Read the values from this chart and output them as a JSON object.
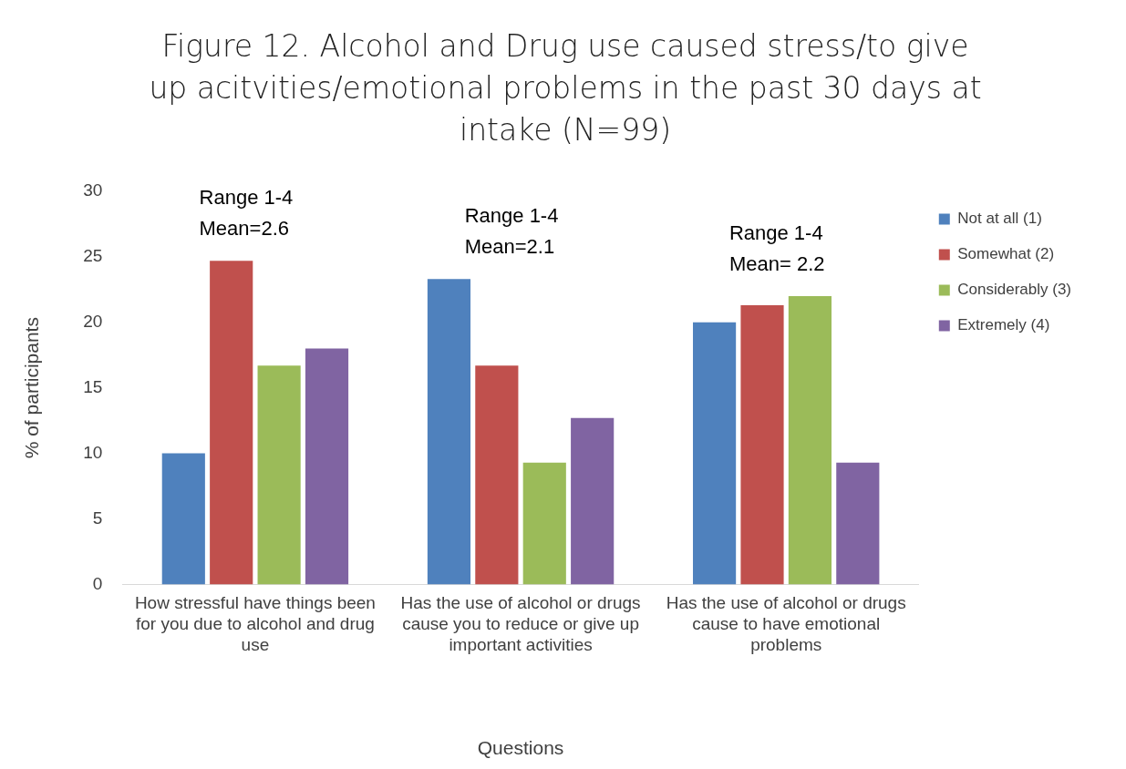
{
  "chart_data": {
    "type": "bar",
    "title": "Figure 12. Alcohol and Drug use caused stress/to give up acitvities/emotional problems in the past 30 days at intake (N=99)",
    "xlabel": "Questions",
    "ylabel": "% of participants",
    "categories": [
      "How stressful have things been for you due to alcohol and drug use",
      "Has the use of alcohol or drugs cause you to reduce or give up important activities",
      "Has the use of alcohol or drugs cause to have emotional problems"
    ],
    "series": [
      {
        "name": "Not at all (1)",
        "color": "#4f81bd",
        "values": [
          10,
          23.3,
          20
        ]
      },
      {
        "name": "Somewhat (2)",
        "color": "#c0504d",
        "values": [
          24.7,
          16.7,
          21.3
        ]
      },
      {
        "name": "Considerably (3)",
        "color": "#9bbb59",
        "values": [
          16.7,
          9.3,
          22
        ]
      },
      {
        "name": "Extremely (4)",
        "color": "#8064a2",
        "values": [
          18,
          12.7,
          9.3
        ]
      }
    ],
    "ylim": [
      0,
      30
    ],
    "yticks": [
      0,
      5,
      10,
      15,
      20,
      25,
      30
    ],
    "grid": false,
    "legend": "top right",
    "annotations": [
      "Range 1-4\nMean=2.6",
      "Range 1-4\nMean=2.1",
      "Range 1-4\nMean= 2.2"
    ]
  }
}
